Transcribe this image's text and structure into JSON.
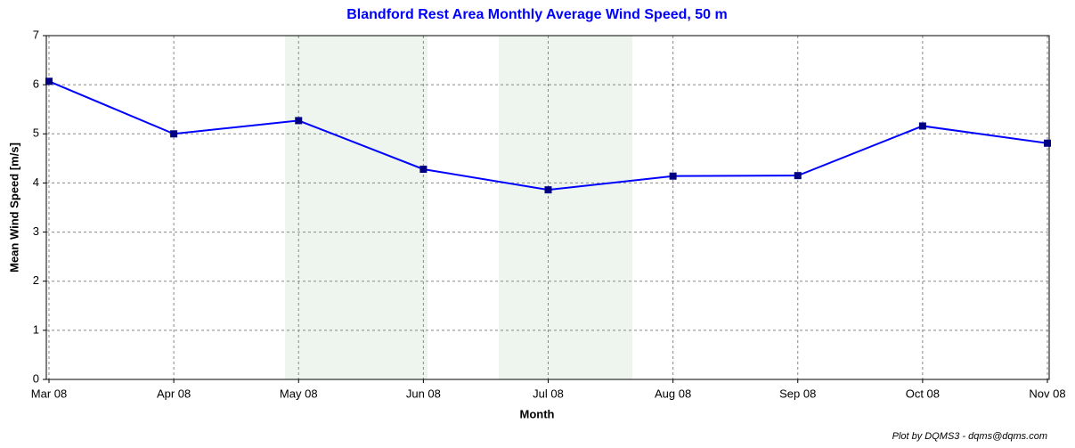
{
  "chart_data": {
    "type": "line",
    "title": "Blandford Rest Area Monthly Average Wind Speed, 50 m",
    "x_label": "Month",
    "y_label": "Mean Wind Speed [m/s]",
    "footer": "Plot by DQMS3 - dqms@dqms.com",
    "categories": [
      "Mar 08",
      "Apr 08",
      "May 08",
      "Jun 08",
      "Jul 08",
      "Aug 08",
      "Sep 08",
      "Oct 08",
      "Nov 08"
    ],
    "series": [
      {
        "name": "Mean Wind Speed",
        "color": "#0000ff",
        "marker_color": "#000080",
        "values": [
          6.07,
          5.0,
          5.27,
          4.28,
          3.86,
          4.14,
          4.15,
          5.16,
          4.81
        ]
      }
    ],
    "ylim": [
      0,
      7
    ],
    "yticks": [
      0,
      1,
      2,
      3,
      4,
      5,
      6,
      7
    ],
    "grid": true,
    "legend": false
  }
}
